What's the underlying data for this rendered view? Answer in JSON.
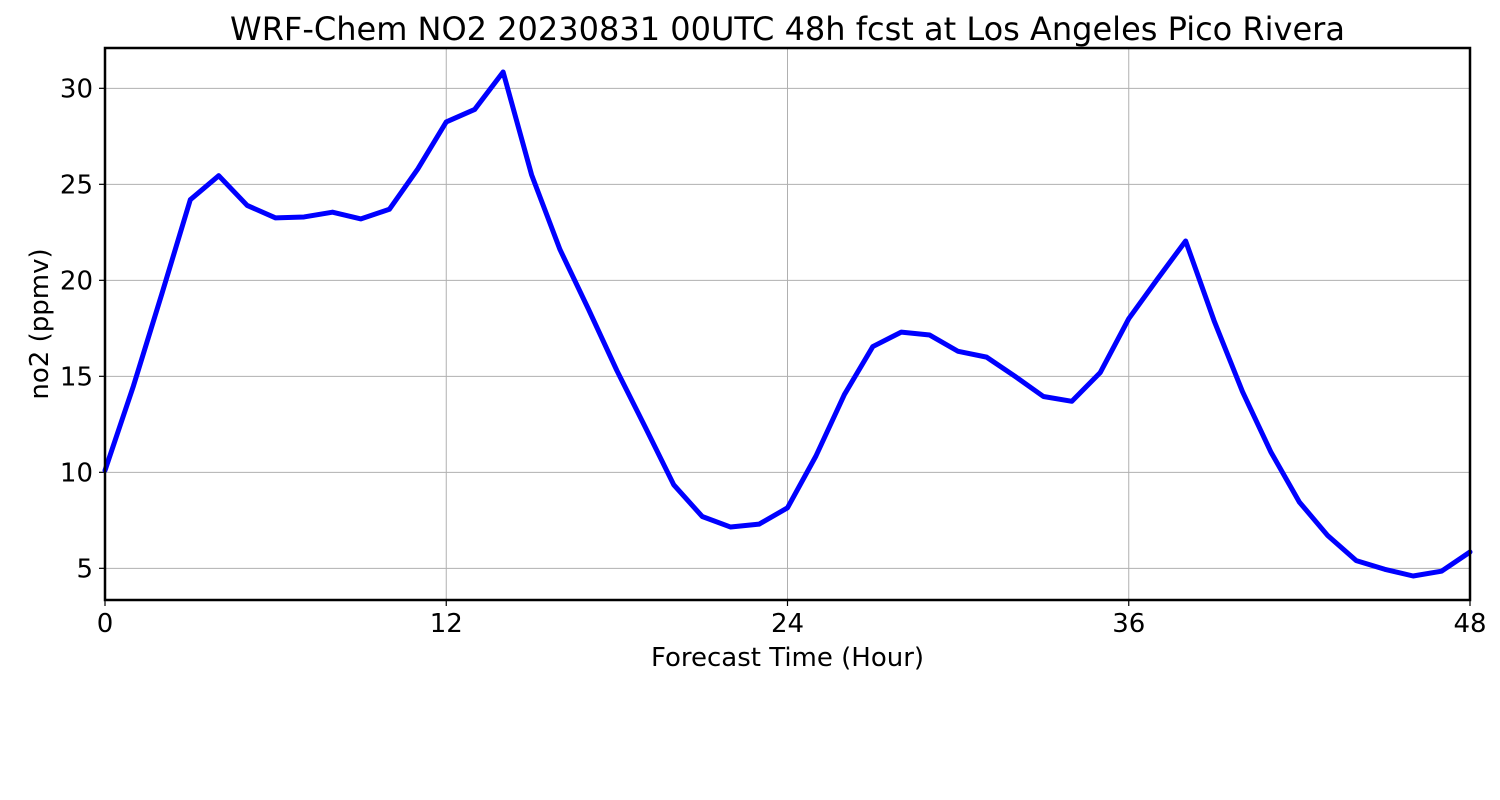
{
  "chart_data": {
    "type": "line",
    "title": "WRF-Chem NO2  20230831 00UTC 48h fcst at Los Angeles Pico Rivera",
    "xlabel": "Forecast Time (Hour)",
    "ylabel": "no2  (ppmv)",
    "xlim": [
      0,
      48
    ],
    "ylim": [
      3.35,
      32.1
    ],
    "xticks": [
      0,
      12,
      24,
      36,
      48
    ],
    "yticks": [
      5,
      10,
      15,
      20,
      25,
      30
    ],
    "grid": true,
    "legend": "none",
    "series": [
      {
        "color": "#0000ff",
        "x": [
          0,
          1,
          2,
          3,
          4,
          5,
          6,
          7,
          8,
          9,
          10,
          11,
          12,
          13,
          14,
          15,
          16,
          17,
          18,
          19,
          20,
          21,
          22,
          23,
          24,
          25,
          26,
          27,
          28,
          29,
          30,
          31,
          32,
          33,
          34,
          35,
          36,
          37,
          38,
          39,
          40,
          41,
          42,
          43,
          44,
          45,
          46,
          47,
          48
        ],
        "y": [
          10.1,
          14.5,
          19.3,
          24.2,
          25.45,
          23.9,
          23.25,
          23.3,
          23.55,
          23.2,
          23.7,
          25.8,
          28.25,
          28.9,
          30.85,
          25.5,
          21.6,
          18.5,
          15.3,
          12.35,
          9.35,
          7.7,
          7.15,
          7.3,
          8.15,
          10.85,
          14.05,
          16.55,
          17.3,
          17.15,
          16.3,
          16.0,
          15.0,
          13.95,
          13.7,
          15.2,
          18.0,
          20.05,
          22.05,
          17.9,
          14.2,
          11.05,
          8.45,
          6.7,
          5.4,
          4.95,
          4.6,
          4.85,
          5.85
        ]
      }
    ]
  }
}
